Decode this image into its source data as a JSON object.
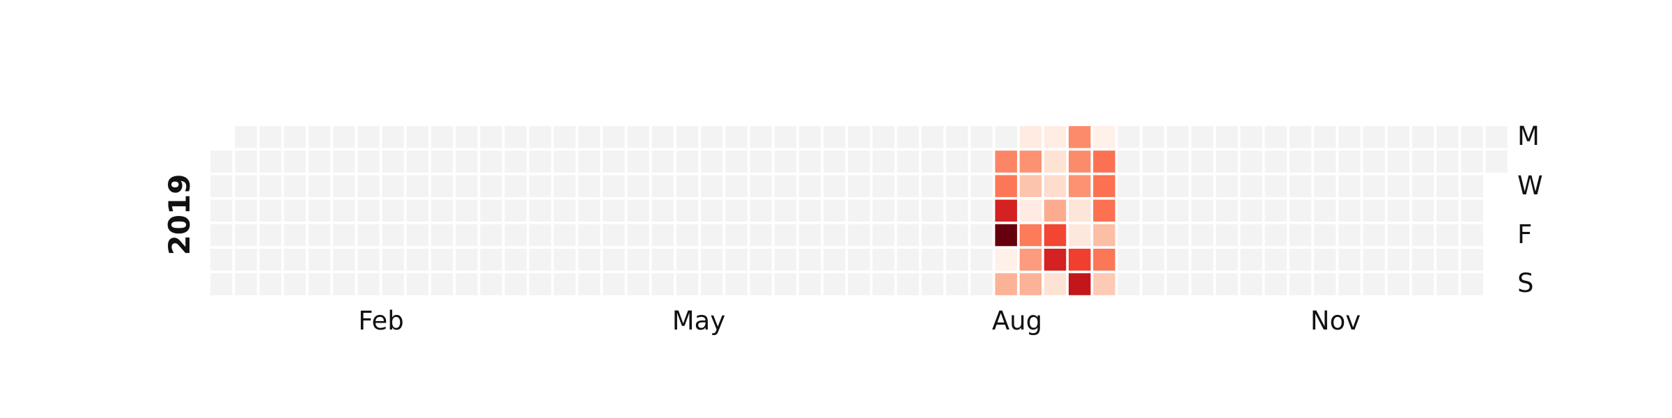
{
  "chart_data": {
    "type": "heatmap",
    "subtype": "calendar",
    "year_label": "2019",
    "weekday_labels": [
      "M",
      "W",
      "F",
      "S"
    ],
    "month_labels": [
      "Feb",
      "May",
      "Aug",
      "Nov"
    ],
    "colormap": "Reds",
    "empty_color": "#f3f3f3",
    "values_note": "Only days in weeks 32-36 (Aug 5 - Sep 8, 2019) carry values; all other days are empty. Values are relative intensities on a 0-1 scale (no colorbar is shown).",
    "active_weeks": [
      {
        "week": 32,
        "days": [
          null,
          0.42,
          0.46,
          0.72,
          1.0,
          0.03,
          0.28
        ]
      },
      {
        "week": 33,
        "days": [
          0.06,
          0.38,
          0.22,
          0.06,
          0.45,
          0.35,
          0.28
        ]
      },
      {
        "week": 34,
        "days": [
          0.05,
          0.12,
          0.14,
          0.3,
          0.6,
          0.72,
          0.12
        ]
      },
      {
        "week": 35,
        "days": [
          0.4,
          0.4,
          0.38,
          0.1,
          0.08,
          0.62,
          0.78
        ]
      },
      {
        "week": 36,
        "days": [
          0.03,
          0.48,
          0.48,
          0.48,
          0.24,
          0.46,
          0.2
        ]
      }
    ]
  }
}
